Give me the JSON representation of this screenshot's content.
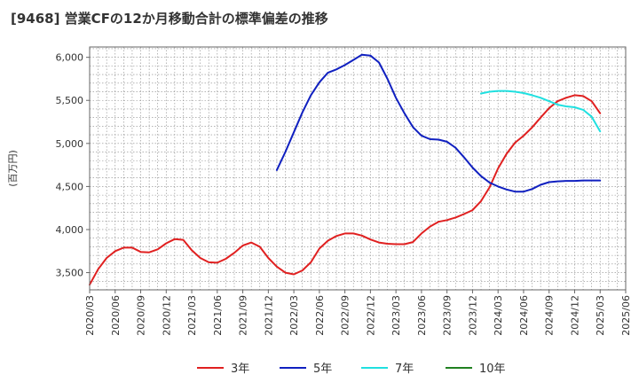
{
  "title": "[9468]  営業CFの12か月移動合計の標準偏差の推移",
  "chart_data": {
    "type": "line",
    "title": "[9468]  営業CFの12か月移動合計の標準偏差の推移",
    "ylabel": "(百万円)",
    "xlabel": "",
    "ylim": [
      3300,
      6120
    ],
    "y_ticks": [
      3500,
      4000,
      4500,
      5000,
      5500,
      6000
    ],
    "y_tick_labels": [
      "3,500",
      "4,000",
      "4,500",
      "5,000",
      "5,500",
      "6,000"
    ],
    "x_range": [
      "2020-03",
      "2025-06"
    ],
    "x_tick_labels": [
      "2020/03",
      "2020/06",
      "2020/09",
      "2020/12",
      "2021/03",
      "2021/06",
      "2021/09",
      "2021/12",
      "2022/03",
      "2022/06",
      "2022/09",
      "2022/12",
      "2023/03",
      "2023/06",
      "2023/09",
      "2023/12",
      "2024/03",
      "2024/06",
      "2024/09",
      "2024/12",
      "2025/03",
      "2025/06"
    ],
    "grid": true,
    "legend_position": "bottom",
    "series": [
      {
        "name": "3年",
        "color": "#e02020",
        "x": [
          "2020-03",
          "2020-04",
          "2020-05",
          "2020-06",
          "2020-07",
          "2020-08",
          "2020-09",
          "2020-10",
          "2020-11",
          "2020-12",
          "2021-01",
          "2021-02",
          "2021-03",
          "2021-04",
          "2021-05",
          "2021-06",
          "2021-07",
          "2021-08",
          "2021-09",
          "2021-10",
          "2021-11",
          "2021-12",
          "2022-01",
          "2022-02",
          "2022-03",
          "2022-04",
          "2022-05",
          "2022-06",
          "2022-07",
          "2022-08",
          "2022-09",
          "2022-10",
          "2022-11",
          "2022-12",
          "2023-01",
          "2023-02",
          "2023-03",
          "2023-04",
          "2023-05",
          "2023-06",
          "2023-07",
          "2023-08",
          "2023-09",
          "2023-10",
          "2023-11",
          "2023-12",
          "2024-01",
          "2024-02",
          "2024-03",
          "2024-04",
          "2024-05",
          "2024-06",
          "2024-07",
          "2024-08",
          "2024-09",
          "2024-10",
          "2024-11",
          "2024-12",
          "2025-01",
          "2025-02",
          "2025-03"
        ],
        "values": [
          3360,
          3540,
          3670,
          3750,
          3790,
          3790,
          3740,
          3735,
          3770,
          3840,
          3890,
          3880,
          3760,
          3670,
          3620,
          3615,
          3660,
          3730,
          3815,
          3850,
          3800,
          3670,
          3570,
          3500,
          3480,
          3525,
          3620,
          3780,
          3870,
          3925,
          3955,
          3955,
          3930,
          3885,
          3850,
          3835,
          3830,
          3830,
          3855,
          3955,
          4035,
          4090,
          4110,
          4140,
          4180,
          4225,
          4330,
          4490,
          4710,
          4880,
          5010,
          5090,
          5185,
          5300,
          5410,
          5490,
          5530,
          5560,
          5550,
          5490,
          5350
        ]
      },
      {
        "name": "5年",
        "color": "#1020c0",
        "x": [
          "2022-01",
          "2022-02",
          "2022-03",
          "2022-04",
          "2022-05",
          "2022-06",
          "2022-07",
          "2022-08",
          "2022-09",
          "2022-10",
          "2022-11",
          "2022-12",
          "2023-01",
          "2023-02",
          "2023-03",
          "2023-04",
          "2023-05",
          "2023-06",
          "2023-07",
          "2023-08",
          "2023-09",
          "2023-10",
          "2023-11",
          "2023-12",
          "2024-01",
          "2024-02",
          "2024-03",
          "2024-04",
          "2024-05",
          "2024-06",
          "2024-07",
          "2024-08",
          "2024-09",
          "2024-10",
          "2024-11",
          "2024-12",
          "2025-01",
          "2025-02",
          "2025-03"
        ],
        "values": [
          4690,
          4900,
          5130,
          5360,
          5560,
          5710,
          5820,
          5860,
          5910,
          5970,
          6030,
          6020,
          5940,
          5750,
          5530,
          5350,
          5190,
          5090,
          5050,
          5045,
          5020,
          4950,
          4840,
          4720,
          4620,
          4545,
          4500,
          4465,
          4440,
          4440,
          4470,
          4520,
          4550,
          4560,
          4565,
          4565,
          4570,
          4570,
          4570
        ]
      },
      {
        "name": "7年",
        "color": "#20e0e0",
        "x": [
          "2024-01",
          "2024-02",
          "2024-03",
          "2024-04",
          "2024-05",
          "2024-06",
          "2024-07",
          "2024-08",
          "2024-09",
          "2024-10",
          "2024-11",
          "2024-12",
          "2025-01",
          "2025-02",
          "2025-03"
        ],
        "values": [
          5580,
          5600,
          5610,
          5610,
          5600,
          5585,
          5560,
          5530,
          5490,
          5450,
          5430,
          5420,
          5390,
          5310,
          5140
        ]
      },
      {
        "name": "10年",
        "color": "#208020",
        "x": [],
        "values": []
      }
    ]
  }
}
